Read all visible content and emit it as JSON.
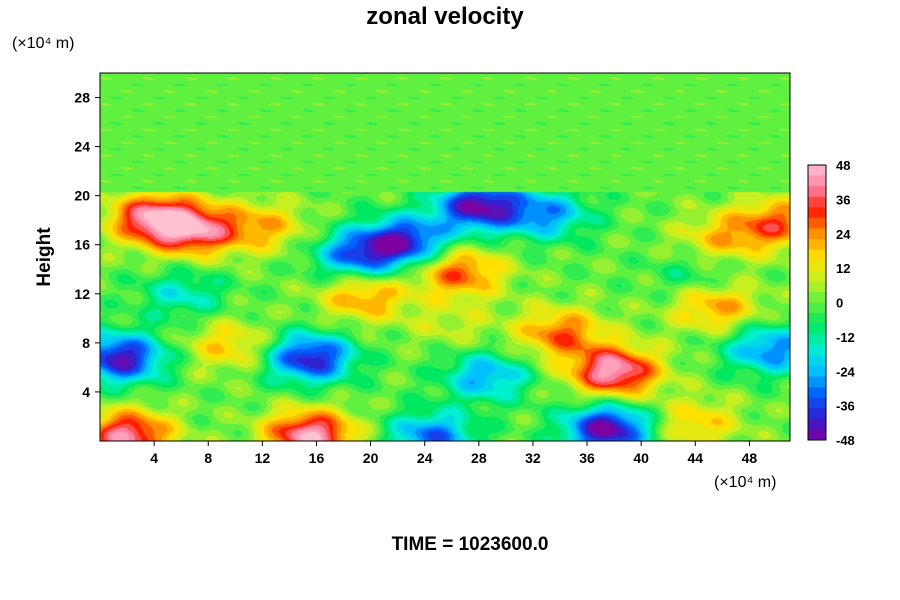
{
  "chart_data": {
    "type": "heatmap",
    "title": "zonal velocity",
    "ylabel": "Height",
    "xlabel": "",
    "y_unit_label": "(×10⁴ m)",
    "x_unit_label": "(×10⁴ m)",
    "footer": "TIME = 1023600.0",
    "xlim": [
      0,
      51
    ],
    "ylim": [
      0,
      30
    ],
    "x_ticks": [
      4,
      8,
      12,
      16,
      20,
      24,
      28,
      32,
      36,
      40,
      44,
      48
    ],
    "y_ticks": [
      4,
      8,
      12,
      16,
      20,
      24,
      28
    ],
    "colorbar": {
      "min": -48,
      "max": 48,
      "ticks": [
        48,
        36,
        24,
        12,
        0,
        -12,
        -24,
        -36,
        -48
      ],
      "colors_low_to_high": [
        "#7f00a0",
        "#3020d0",
        "#0060ff",
        "#00c0ff",
        "#00f0d0",
        "#00e860",
        "#60f040",
        "#c8f020",
        "#ffe000",
        "#ff9000",
        "#ff2000",
        "#ff80a0",
        "#ffc0d0"
      ]
    },
    "field_features": [
      {
        "x": 4,
        "y": 18.2,
        "value": 42
      },
      {
        "x": 7,
        "y": 17.2,
        "value": 36
      },
      {
        "x": 12,
        "y": 17.5,
        "value": 20
      },
      {
        "x": 50,
        "y": 17.8,
        "value": 28
      },
      {
        "x": 46,
        "y": 16.5,
        "value": 18
      },
      {
        "x": 28,
        "y": 19.2,
        "value": -46
      },
      {
        "x": 22.5,
        "y": 16.3,
        "value": -40
      },
      {
        "x": 19,
        "y": 15.2,
        "value": -32
      },
      {
        "x": 33,
        "y": 18.5,
        "value": -26
      },
      {
        "x": 26.5,
        "y": 13.8,
        "value": 30
      },
      {
        "x": 19.5,
        "y": 11.8,
        "value": 24
      },
      {
        "x": 45.5,
        "y": 11.0,
        "value": 24
      },
      {
        "x": 6,
        "y": 12.0,
        "value": -16
      },
      {
        "x": 44,
        "y": 13.5,
        "value": -10
      },
      {
        "x": 1.5,
        "y": 6.8,
        "value": -44
      },
      {
        "x": 15.5,
        "y": 6.8,
        "value": -42
      },
      {
        "x": 38,
        "y": 5.7,
        "value": 46
      },
      {
        "x": 34,
        "y": 8.8,
        "value": 28
      },
      {
        "x": 49.5,
        "y": 7.5,
        "value": -30
      },
      {
        "x": 28.5,
        "y": 5.3,
        "value": -26
      },
      {
        "x": 15.5,
        "y": 0.5,
        "value": 46
      },
      {
        "x": 2,
        "y": 0.5,
        "value": 42
      },
      {
        "x": 37.5,
        "y": 1.0,
        "value": -48
      },
      {
        "x": 24.5,
        "y": 0.4,
        "value": -32
      },
      {
        "x": 44,
        "y": 1.5,
        "value": 18
      },
      {
        "x": 9.5,
        "y": 7.8,
        "value": 18
      },
      {
        "x": 26,
        "y": 9.5,
        "value": 8
      }
    ]
  }
}
